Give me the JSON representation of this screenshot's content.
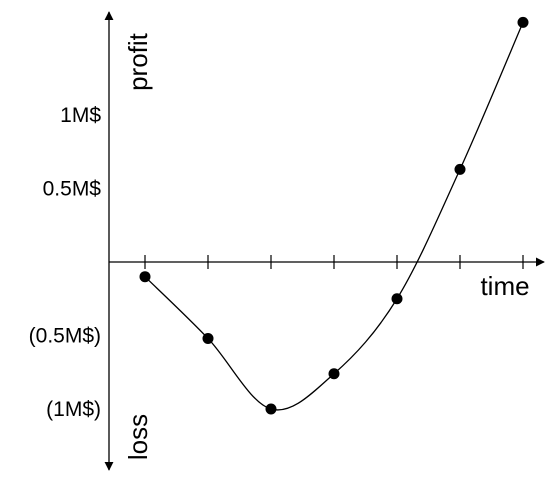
{
  "chart_data": {
    "type": "line",
    "xlabel": "time",
    "ylabel_positive": "profit",
    "ylabel_negative": "loss",
    "y_ticks": [
      {
        "value": 1.0,
        "label": "1M$"
      },
      {
        "value": 0.5,
        "label": "0.5M$"
      },
      {
        "value": -0.5,
        "label": "(0.5M$)"
      },
      {
        "value": -1.0,
        "label": "(1M$)"
      }
    ],
    "x_ticks": [
      1,
      2,
      3,
      4,
      5,
      6,
      7
    ],
    "x": [
      1,
      2,
      3,
      4,
      5,
      6,
      7
    ],
    "y": [
      -0.1,
      -0.52,
      -1.0,
      -0.76,
      -0.25,
      0.63,
      1.63
    ],
    "xlim": [
      0,
      7.4
    ],
    "ylim": [
      -1.35,
      1.71
    ],
    "smooth": true,
    "grid": false,
    "colors": {
      "axis": "#000000",
      "line": "#000000",
      "marker": "#000000"
    }
  }
}
